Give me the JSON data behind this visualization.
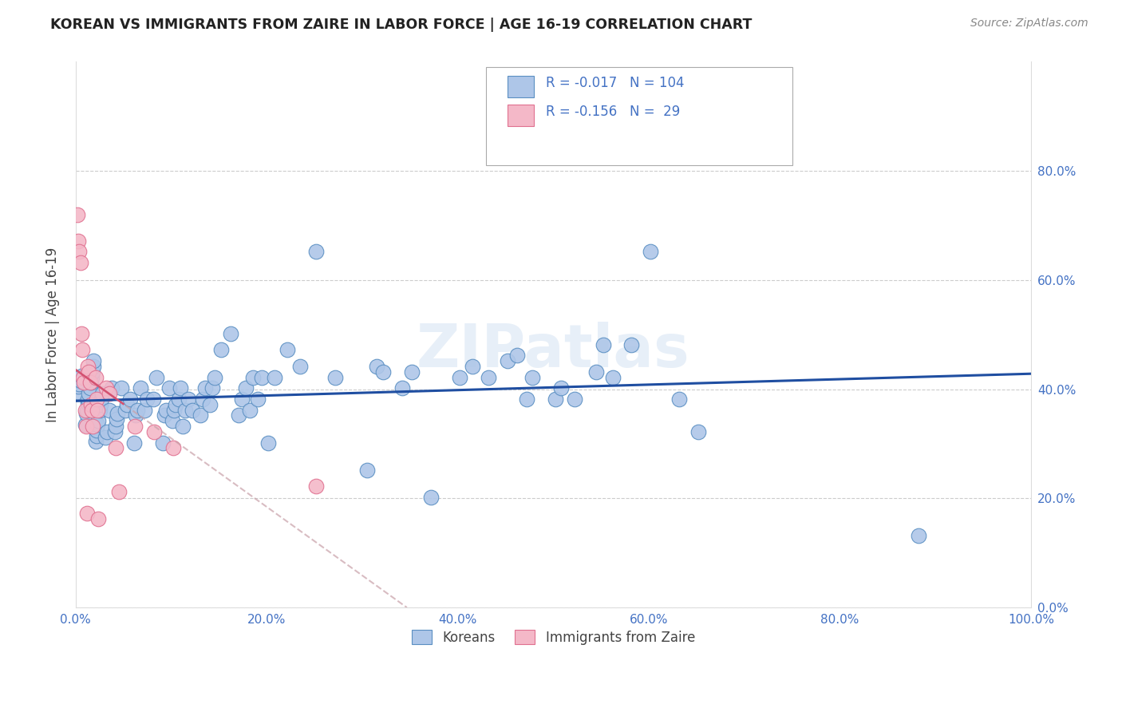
{
  "title": "KOREAN VS IMMIGRANTS FROM ZAIRE IN LABOR FORCE | AGE 16-19 CORRELATION CHART",
  "source": "Source: ZipAtlas.com",
  "ylabel": "In Labor Force | Age 16-19",
  "xlim": [
    0.0,
    1.0
  ],
  "ylim": [
    0.0,
    1.0
  ],
  "xticks": [
    0.0,
    0.2,
    0.4,
    0.6,
    0.8,
    1.0
  ],
  "yticks": [
    0.0,
    0.2,
    0.4,
    0.6,
    0.8
  ],
  "xticklabels": [
    "0.0%",
    "20.0%",
    "40.0%",
    "60.0%",
    "80.0%",
    "100.0%"
  ],
  "yticklabels": [
    "0.0%",
    "20.0%",
    "40.0%",
    "60.0%",
    "80.0%"
  ],
  "korean_color": "#aec6e8",
  "zaire_color": "#f4b8c8",
  "korean_edge": "#5a8fc2",
  "zaire_edge": "#e07090",
  "trendline_korean_color": "#1f4ea1",
  "trendline_zaire_color": "#c8a0a8",
  "trendline_zaire_solid_color": "#d45070",
  "R_korean": -0.017,
  "N_korean": 104,
  "R_zaire": -0.156,
  "N_zaire": 29,
  "legend_label_1": "Koreans",
  "legend_label_2": "Immigrants from Zaire",
  "watermark": "ZIPatlas",
  "background_color": "#ffffff",
  "grid_color": "#cccccc",
  "label_color": "#4472c4",
  "korean_x": [
    0.002,
    0.003,
    0.004,
    0.005,
    0.006,
    0.01,
    0.011,
    0.012,
    0.013,
    0.013,
    0.014,
    0.015,
    0.016,
    0.017,
    0.018,
    0.019,
    0.019,
    0.021,
    0.022,
    0.022,
    0.023,
    0.024,
    0.025,
    0.026,
    0.027,
    0.028,
    0.031,
    0.033,
    0.035,
    0.038,
    0.041,
    0.042,
    0.043,
    0.044,
    0.048,
    0.052,
    0.054,
    0.057,
    0.061,
    0.063,
    0.065,
    0.068,
    0.072,
    0.075,
    0.081,
    0.085,
    0.091,
    0.093,
    0.095,
    0.098,
    0.101,
    0.103,
    0.105,
    0.108,
    0.11,
    0.112,
    0.115,
    0.118,
    0.122,
    0.131,
    0.133,
    0.136,
    0.141,
    0.143,
    0.146,
    0.152,
    0.162,
    0.171,
    0.174,
    0.178,
    0.182,
    0.186,
    0.191,
    0.195,
    0.202,
    0.208,
    0.222,
    0.235,
    0.252,
    0.272,
    0.305,
    0.315,
    0.322,
    0.342,
    0.352,
    0.372,
    0.402,
    0.415,
    0.432,
    0.452,
    0.462,
    0.472,
    0.478,
    0.502,
    0.508,
    0.522,
    0.545,
    0.552,
    0.562,
    0.582,
    0.602,
    0.632,
    0.652,
    0.882
  ],
  "korean_y": [
    0.395,
    0.405,
    0.41,
    0.415,
    0.425,
    0.335,
    0.355,
    0.362,
    0.375,
    0.382,
    0.392,
    0.402,
    0.412,
    0.422,
    0.432,
    0.442,
    0.452,
    0.305,
    0.315,
    0.325,
    0.335,
    0.342,
    0.362,
    0.372,
    0.382,
    0.392,
    0.312,
    0.322,
    0.362,
    0.402,
    0.322,
    0.332,
    0.345,
    0.355,
    0.402,
    0.362,
    0.372,
    0.382,
    0.302,
    0.352,
    0.362,
    0.402,
    0.362,
    0.382,
    0.382,
    0.422,
    0.302,
    0.352,
    0.362,
    0.402,
    0.342,
    0.362,
    0.372,
    0.382,
    0.402,
    0.332,
    0.362,
    0.382,
    0.362,
    0.352,
    0.382,
    0.402,
    0.372,
    0.402,
    0.422,
    0.472,
    0.502,
    0.352,
    0.382,
    0.402,
    0.362,
    0.422,
    0.382,
    0.422,
    0.302,
    0.422,
    0.472,
    0.442,
    0.652,
    0.422,
    0.252,
    0.442,
    0.432,
    0.402,
    0.432,
    0.202,
    0.422,
    0.442,
    0.422,
    0.452,
    0.462,
    0.382,
    0.422,
    0.382,
    0.402,
    0.382,
    0.432,
    0.482,
    0.422,
    0.482,
    0.652,
    0.382,
    0.322,
    0.132
  ],
  "zaire_x": [
    0.002,
    0.003,
    0.004,
    0.005,
    0.006,
    0.007,
    0.008,
    0.009,
    0.01,
    0.011,
    0.012,
    0.013,
    0.014,
    0.015,
    0.016,
    0.017,
    0.018,
    0.021,
    0.022,
    0.023,
    0.024,
    0.032,
    0.035,
    0.042,
    0.045,
    0.062,
    0.082,
    0.102,
    0.252
  ],
  "zaire_y": [
    0.72,
    0.672,
    0.652,
    0.632,
    0.502,
    0.472,
    0.422,
    0.412,
    0.362,
    0.332,
    0.172,
    0.442,
    0.432,
    0.412,
    0.372,
    0.362,
    0.332,
    0.422,
    0.382,
    0.362,
    0.162,
    0.402,
    0.392,
    0.292,
    0.212,
    0.332,
    0.322,
    0.292,
    0.222
  ]
}
